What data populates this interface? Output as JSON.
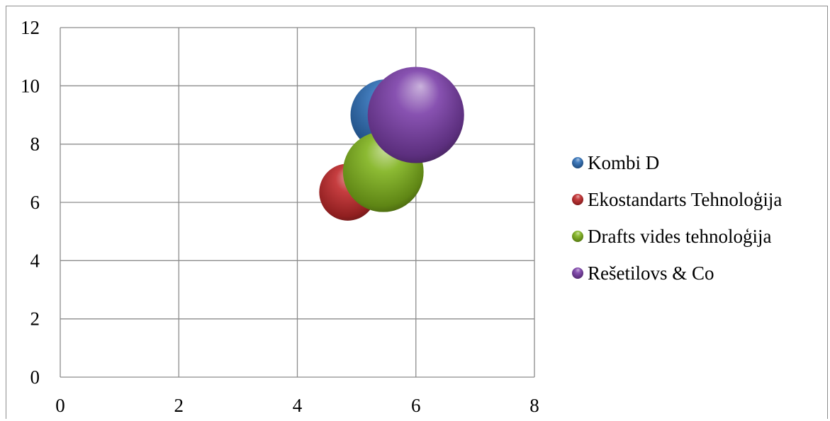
{
  "chart_data": {
    "type": "bubble",
    "title": "",
    "xlabel": "",
    "ylabel": "",
    "xlim": [
      0,
      8
    ],
    "ylim": [
      0,
      12
    ],
    "x_ticks": [
      0,
      2,
      4,
      6,
      8
    ],
    "y_ticks": [
      0,
      2,
      4,
      6,
      8,
      10,
      12
    ],
    "grid": true,
    "legend_position": "right",
    "series": [
      {
        "name": "Kombi D",
        "x": 5.5,
        "y": 9.0,
        "size": 5.5,
        "color": "#2e6fb7"
      },
      {
        "name": "Ekostandarts Tehnoloģija",
        "x": 4.85,
        "y": 6.35,
        "size": 3.5,
        "color": "#c0292b"
      },
      {
        "name": "Drafts vides tehnoloģija",
        "x": 5.45,
        "y": 7.05,
        "size": 7.0,
        "color": "#7fb21c"
      },
      {
        "name": "Rešetilovs & Co",
        "x": 6.0,
        "y": 9.0,
        "size": 10.0,
        "color": "#7b3fa8"
      }
    ]
  }
}
